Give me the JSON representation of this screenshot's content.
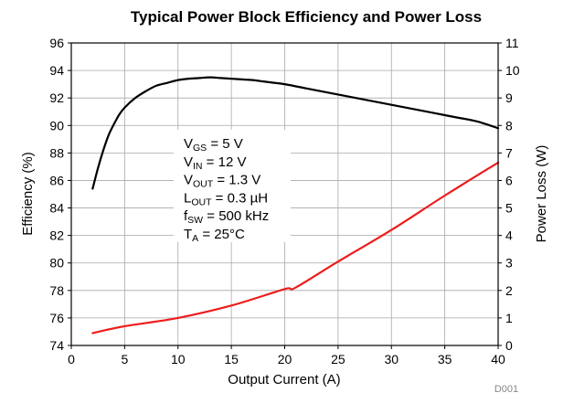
{
  "chart_data": {
    "type": "line",
    "title": "Typical Power Block Efficiency and Power Loss",
    "xlabel": "Output Current (A)",
    "ylabel_left": "Efficiency (%)",
    "ylabel_right": "Power Loss (W)",
    "xlim": [
      0,
      40
    ],
    "ylim_left": [
      74,
      96
    ],
    "ylim_right": [
      0,
      11
    ],
    "x_ticks": [
      "0",
      "5",
      "10",
      "15",
      "20",
      "25",
      "30",
      "35",
      "40"
    ],
    "y_left_ticks": [
      "74",
      "76",
      "78",
      "80",
      "82",
      "84",
      "86",
      "88",
      "90",
      "92",
      "94",
      "96"
    ],
    "y_right_ticks": [
      "0",
      "1",
      "2",
      "3",
      "4",
      "5",
      "6",
      "7",
      "8",
      "9",
      "10",
      "11"
    ],
    "grid": true,
    "series": [
      {
        "name": "Efficiency",
        "axis": "left",
        "color": "#000000",
        "x": [
          2,
          2.5,
          3,
          3.5,
          4,
          4.5,
          5,
          6,
          7,
          8,
          9,
          10,
          11,
          12,
          13,
          14,
          15,
          16,
          17,
          18,
          19,
          20,
          22,
          24,
          26,
          28,
          30,
          32,
          34,
          36,
          38,
          40
        ],
        "y": [
          85.4,
          86.9,
          88.2,
          89.3,
          90.1,
          90.8,
          91.3,
          92.0,
          92.5,
          92.9,
          93.1,
          93.3,
          93.4,
          93.45,
          93.5,
          93.45,
          93.4,
          93.35,
          93.3,
          93.2,
          93.1,
          93.0,
          92.7,
          92.4,
          92.1,
          91.8,
          91.5,
          91.2,
          90.9,
          90.6,
          90.3,
          89.8
        ]
      },
      {
        "name": "Power Loss",
        "axis": "right",
        "color": "#ee1c1c",
        "x": [
          2,
          5,
          10,
          15,
          20,
          21,
          25,
          30,
          35,
          40
        ],
        "y": [
          0.45,
          0.7,
          1.0,
          1.45,
          2.05,
          2.1,
          3.05,
          4.2,
          5.45,
          6.65
        ]
      }
    ],
    "annotation": {
      "lines": [
        {
          "main": "V",
          "sub": "GS",
          "rest": " = 5 V"
        },
        {
          "main": "V",
          "sub": "IN",
          "rest": " = 12 V"
        },
        {
          "main": "V",
          "sub": "OUT",
          "rest": " = 1.3 V"
        },
        {
          "main": "L",
          "sub": "OUT",
          "rest": " = 0.3 µH"
        },
        {
          "main": "f",
          "sub": "SW",
          "rest": " = 500 kHz"
        },
        {
          "main": "T",
          "sub": "A",
          "rest": " = 25°C"
        }
      ]
    },
    "figure_code": "D001"
  }
}
